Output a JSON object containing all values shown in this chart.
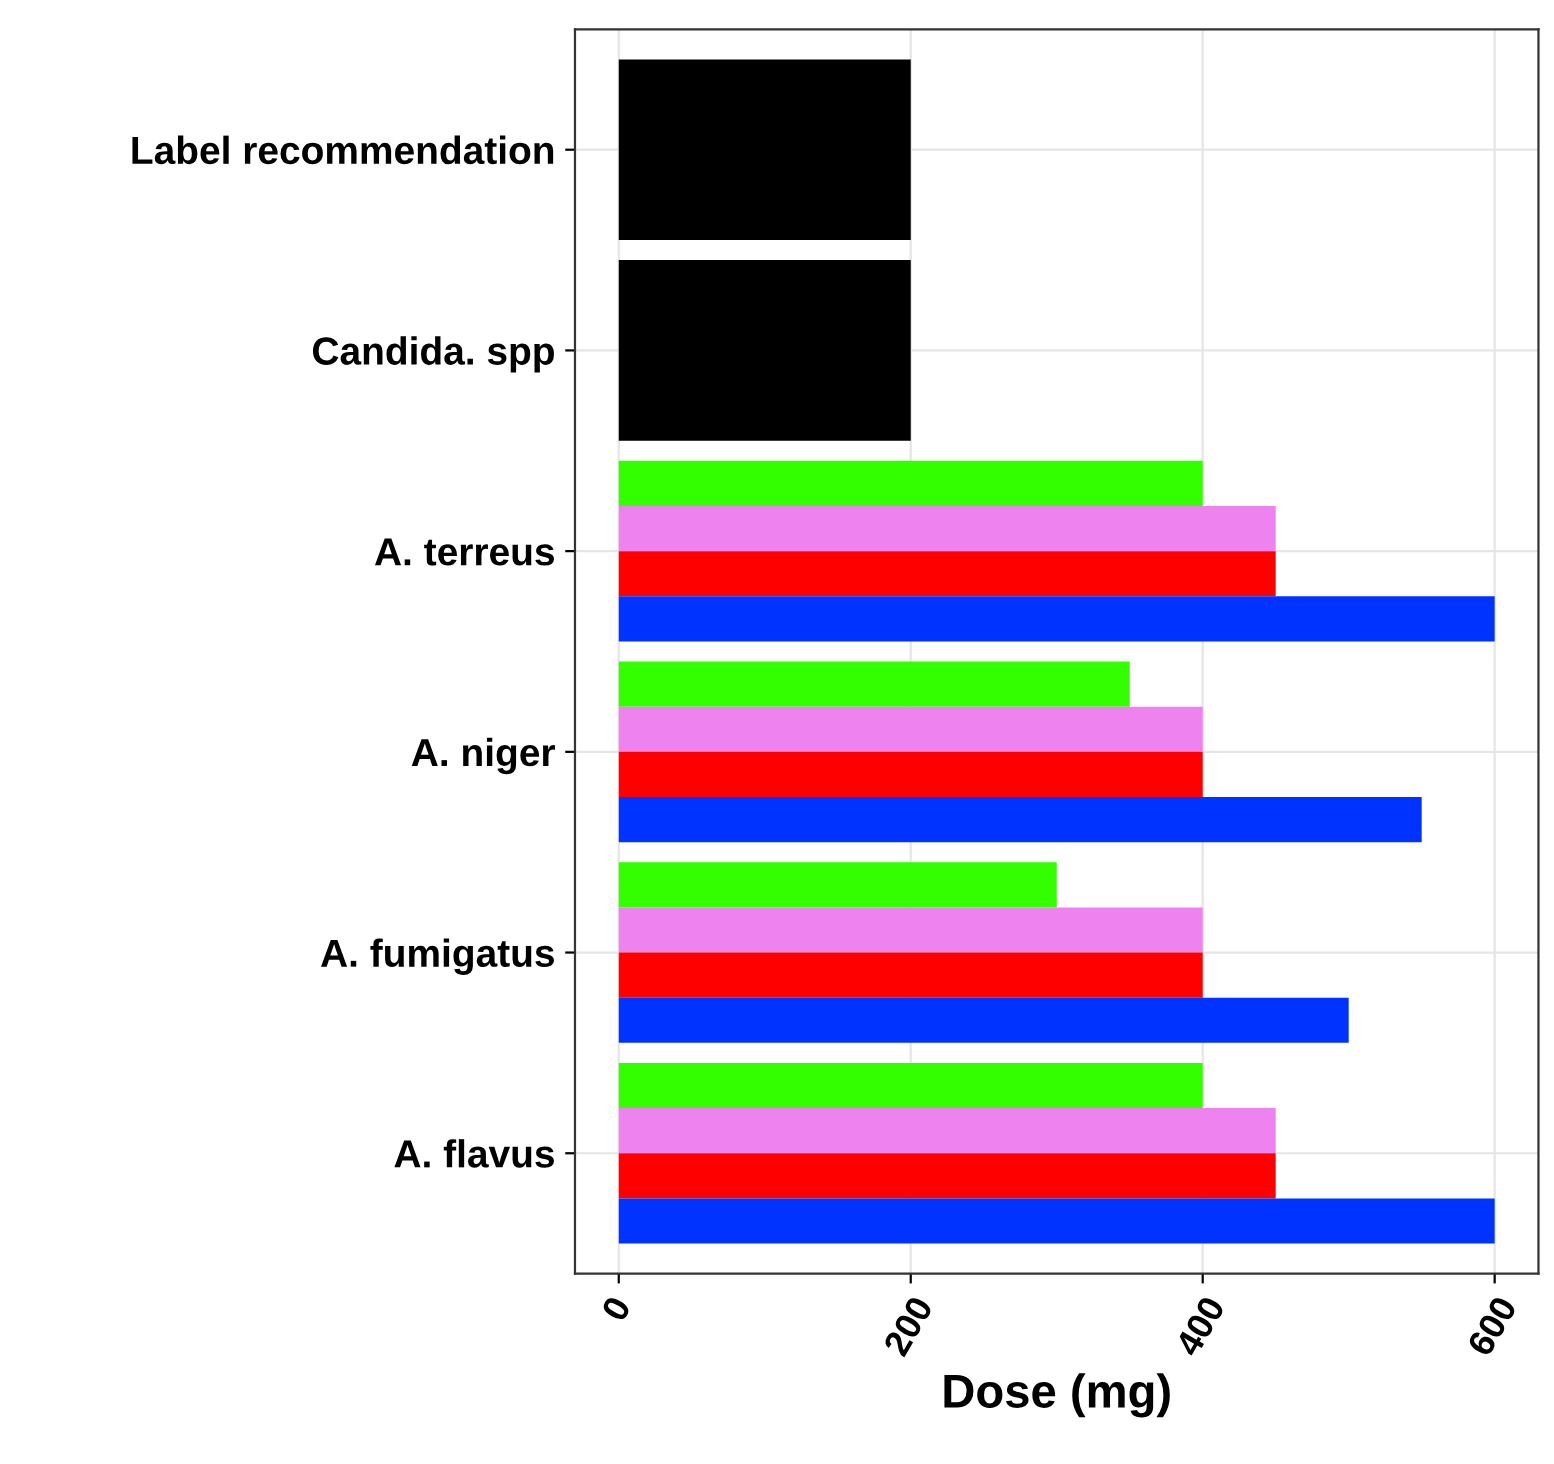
{
  "chart_data": {
    "type": "bar",
    "orientation": "horizontal",
    "xlabel": "Dose (mg)",
    "categories": [
      "Label recommendation",
      "Candida. spp",
      "A. terreus",
      "A. niger",
      "A. fumigatus",
      "A. flavus"
    ],
    "series": [
      {
        "color": "#33ff00",
        "values": [
          null,
          null,
          400,
          350,
          300,
          400
        ]
      },
      {
        "color": "#ee82ee",
        "values": [
          null,
          null,
          450,
          400,
          400,
          450
        ]
      },
      {
        "color": "#ff0000",
        "values": [
          null,
          null,
          450,
          400,
          400,
          450
        ]
      },
      {
        "color": "#0033ff",
        "values": [
          null,
          null,
          600,
          550,
          500,
          600
        ]
      },
      {
        "color": "#000000",
        "values": [
          200,
          200,
          null,
          null,
          null,
          null
        ]
      }
    ],
    "xlim": [
      -30,
      630
    ],
    "xticks": [
      0,
      200,
      400,
      600
    ],
    "grid": true,
    "legend": false
  }
}
